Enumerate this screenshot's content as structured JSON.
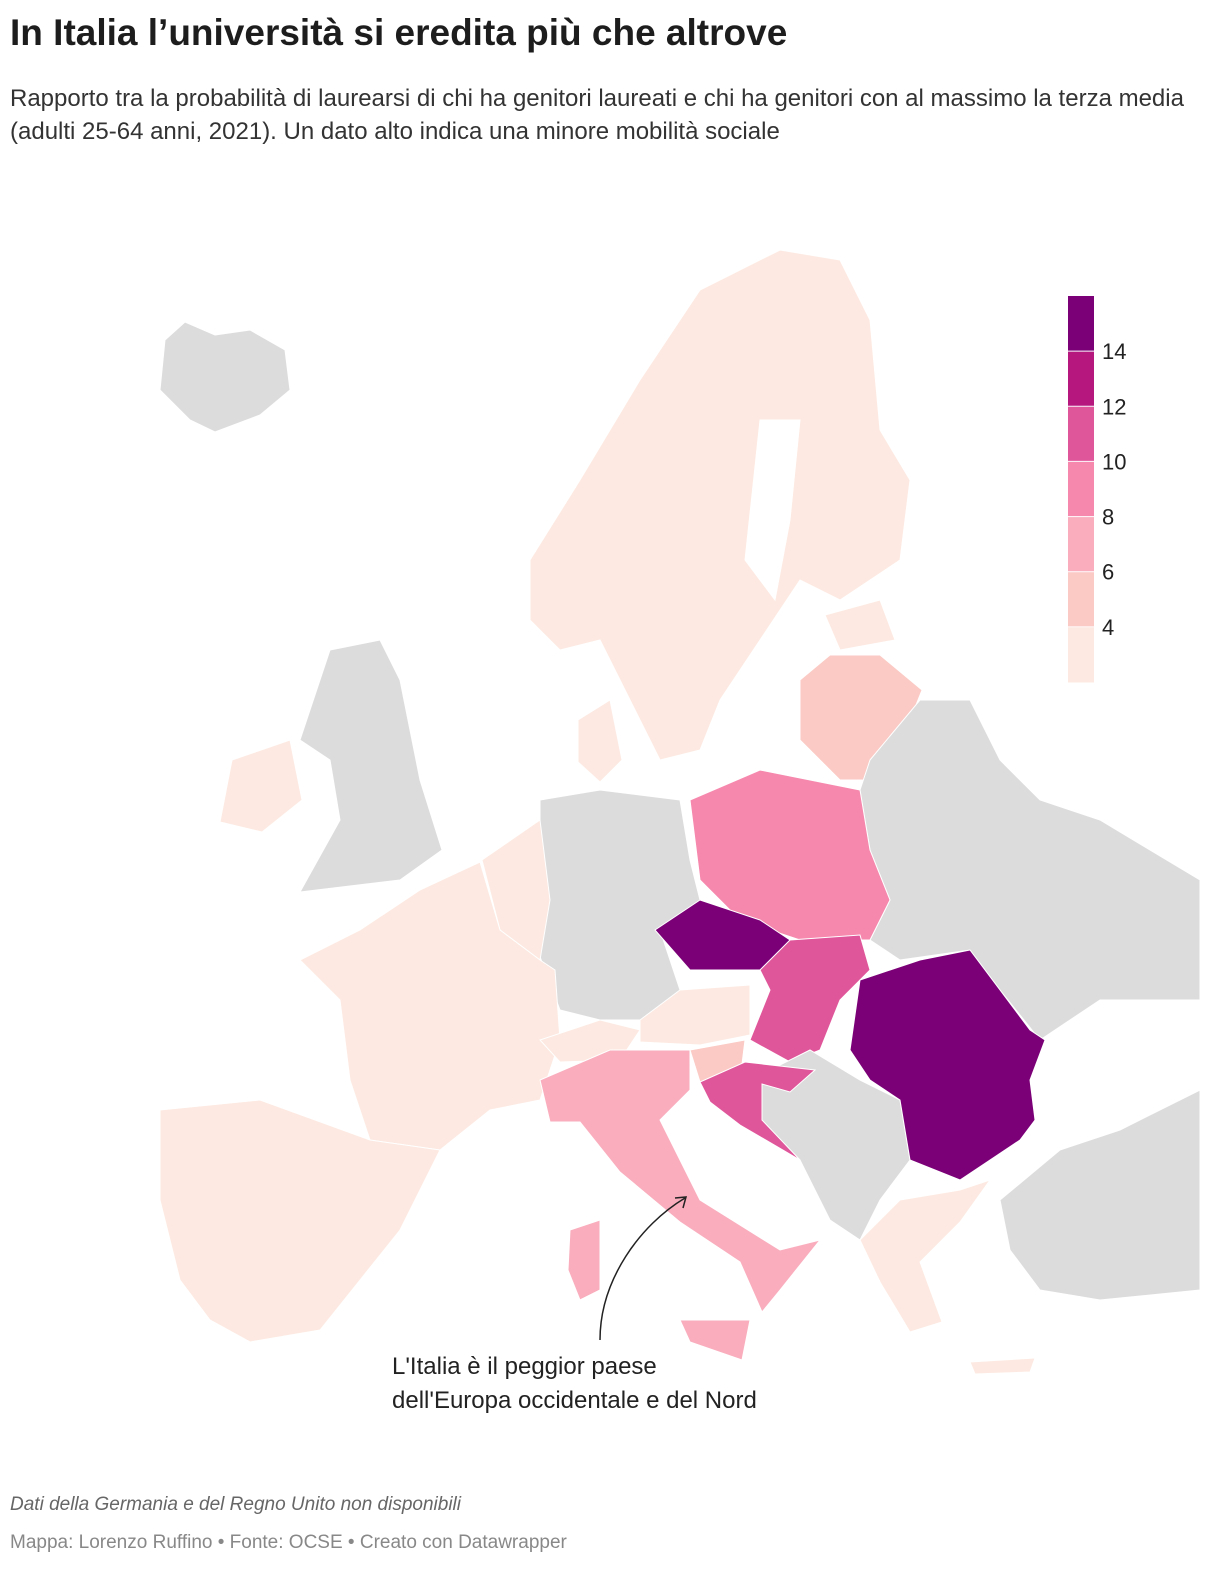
{
  "header": {
    "title": "In Italia l’università si eredita più che altrove",
    "subtitle": "Rapporto tra la probabilità di laurearsi di chi ha genitori laureati e chi ha genitori con al massimo la terza media (adulti 25-64 anni, 2021). Un dato alto indica una minore mobilità sociale"
  },
  "legend": {
    "range": [
      2,
      16
    ],
    "ticks": [
      4,
      6,
      8,
      10,
      12,
      14
    ],
    "colors": [
      "#fde9e1",
      "#fbcac4",
      "#f9adbd",
      "#f687ad",
      "#e0569a",
      "#b5177f",
      "#7b0077"
    ]
  },
  "annotation": {
    "lines": [
      "L'Italia è il peggior paese",
      "dell'Europa occidentale e del Nord"
    ]
  },
  "footer": {
    "note": "Dati della Germania e del Regno Unito non disponibili",
    "credits": "Mappa: Lorenzo Ruffino • Fonte: OCSE • Creato con Datawrapper"
  }
}
